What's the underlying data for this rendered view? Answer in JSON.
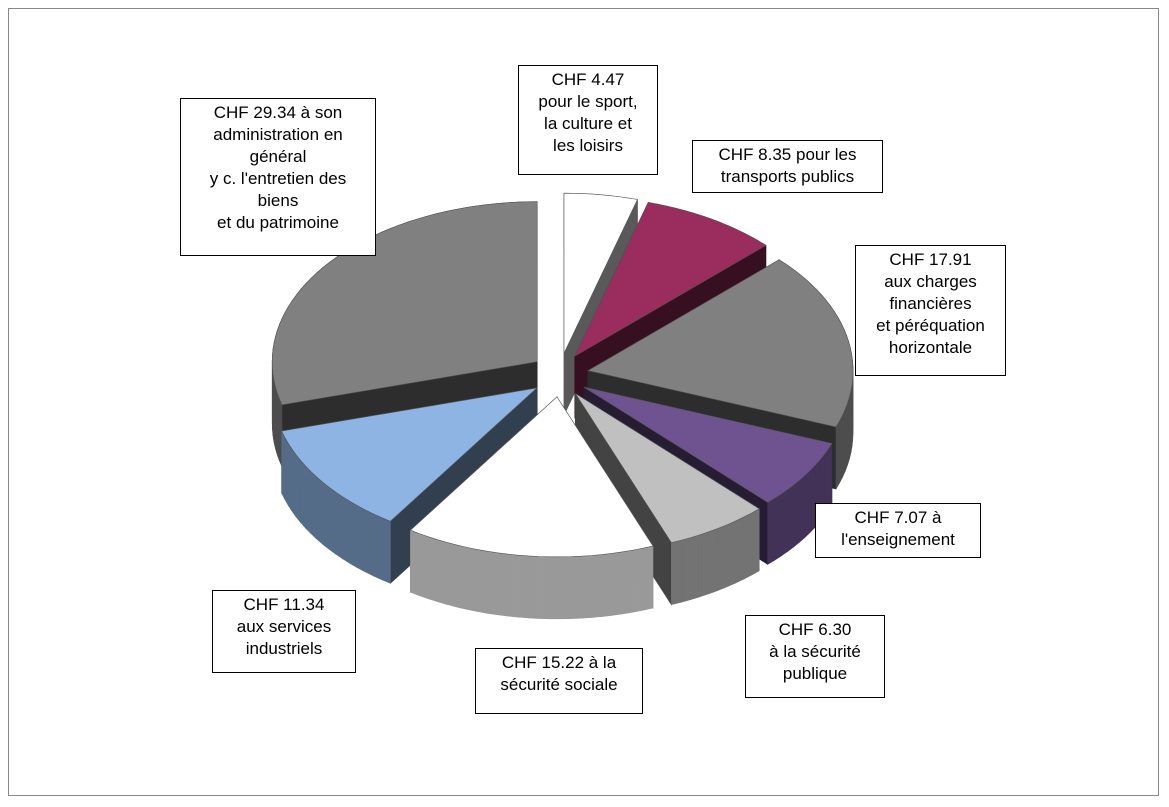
{
  "chart_data": {
    "type": "pie",
    "values": [
      4.47,
      8.35,
      17.91,
      7.07,
      6.3,
      15.22,
      11.34,
      29.34
    ],
    "value_labels": [
      "CHF 4.47\npour le sport,\nla culture et\nles loisirs",
      "CHF 8.35 pour les\ntransports publics",
      "CHF 17.91\naux charges\nfinancières\net péréquation\nhorizontale",
      "CHF 7.07 à\nl'enseignement",
      "CHF 6.30\nà la sécurité\npublique",
      "CHF 15.22 à la\nsécurité sociale",
      "CHF 11.34\naux services\nindustriels",
      "CHF 29.34 à son\nadministration en\ngénéral\ny c. l'entretien des\nbiens\net du patrimoine"
    ],
    "colors": [
      "#ffffff",
      "#9b2d5e",
      "#808080",
      "#6f5391",
      "#c0c0c0",
      "#ffffff",
      "#8db4e2",
      "#808080"
    ]
  }
}
